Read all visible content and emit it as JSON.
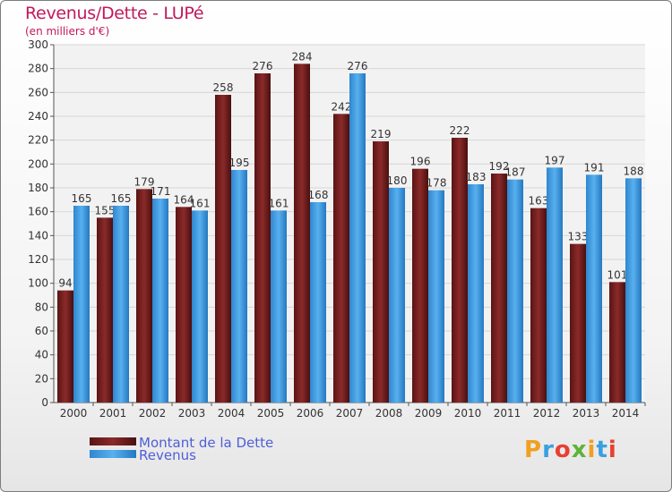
{
  "chart_data": {
    "type": "bar",
    "title": "Revenus/Dette - LUPé",
    "subtitle": "(en milliers d'€)",
    "categories": [
      "2000",
      "2001",
      "2002",
      "2003",
      "2004",
      "2005",
      "2006",
      "2007",
      "2008",
      "2009",
      "2010",
      "2011",
      "2012",
      "2013",
      "2014"
    ],
    "series": [
      {
        "name": "Montant de la Dette",
        "color": "#7a1f1f",
        "values": [
          94,
          155,
          179,
          164,
          258,
          276,
          284,
          242,
          219,
          196,
          222,
          192,
          163,
          133,
          101
        ]
      },
      {
        "name": "Revenus",
        "color": "#3d9be0",
        "values": [
          165,
          165,
          171,
          161,
          195,
          161,
          168,
          276,
          180,
          178,
          183,
          187,
          197,
          191,
          188
        ]
      }
    ],
    "ylim": [
      0,
      300
    ],
    "ytick_step": 20,
    "grid": true,
    "legend_position": "bottom-left"
  },
  "logo": {
    "text": "Proxiti",
    "letters": [
      "P",
      "r",
      "o",
      "x",
      "i",
      "t",
      "i"
    ],
    "colors": [
      "#f0a020",
      "#3aa0e0",
      "#e84030",
      "#5fb33a",
      "#f0a020",
      "#3aa0e0",
      "#e84030"
    ]
  }
}
